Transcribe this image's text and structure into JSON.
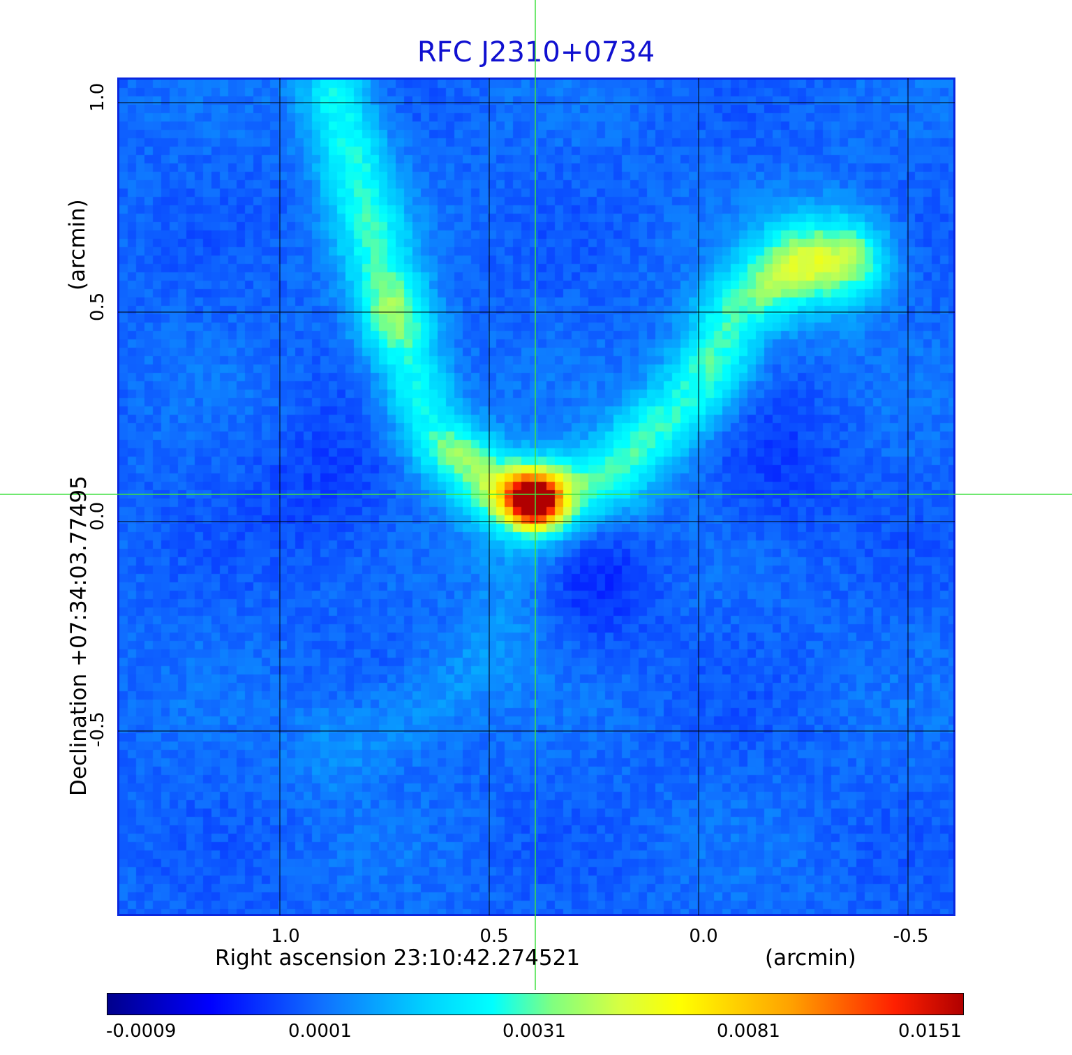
{
  "title": "RFC J2310+0734",
  "x_axis": {
    "label": "Right ascension  23:10:42.274521",
    "unit": "(arcmin)",
    "ticks": [
      "1.0",
      "0.5",
      "0.0",
      "-0.5"
    ]
  },
  "y_axis": {
    "label": "Declination  +07:34:03.77495",
    "unit": "(arcmin)",
    "ticks": [
      "1.0",
      "0.5",
      "0.0",
      "-0.5"
    ]
  },
  "colorbar": {
    "ticks": [
      "-0.0009",
      "0.0001",
      "0.0031",
      "0.0081",
      "0.0151"
    ]
  },
  "colors": {
    "title": "#1010d0",
    "frame": "#0a28e0",
    "crosshair": "#40e040",
    "grid": "#000000"
  }
}
